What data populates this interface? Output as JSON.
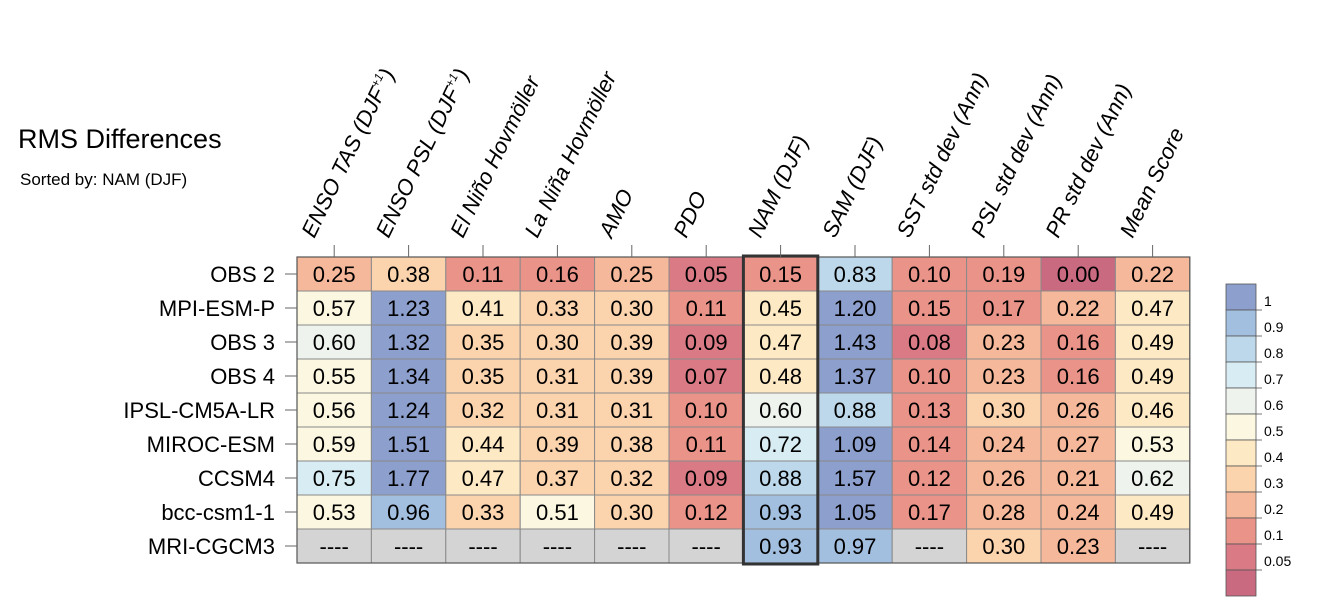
{
  "title": "RMS Differences",
  "subtitle": "Sorted by: NAM (DJF)",
  "chart_data": {
    "type": "heatmap",
    "columns": [
      "ENSO TAS (DJF+1)",
      "ENSO PSL (DJF+1)",
      "El Niño Hovmöller",
      "La Niña Hovmöller",
      "AMO",
      "PDO",
      "NAM (DJF)",
      "SAM (DJF)",
      "SST std dev (Ann)",
      "PSL std dev (Ann)",
      "PR std dev (Ann)",
      "Mean Score"
    ],
    "rows": [
      "OBS 2",
      "MPI-ESM-P",
      "OBS 3",
      "OBS 4",
      "IPSL-CM5A-LR",
      "MIROC-ESM",
      "CCSM4",
      "bcc-csm1-1",
      "MRI-CGCM3"
    ],
    "values": [
      [
        0.25,
        0.38,
        0.11,
        0.16,
        0.25,
        0.05,
        0.15,
        0.83,
        0.1,
        0.19,
        0.0,
        0.22
      ],
      [
        0.57,
        1.23,
        0.41,
        0.33,
        0.3,
        0.11,
        0.45,
        1.2,
        0.15,
        0.17,
        0.22,
        0.47
      ],
      [
        0.6,
        1.32,
        0.35,
        0.3,
        0.39,
        0.09,
        0.47,
        1.43,
        0.08,
        0.23,
        0.16,
        0.49
      ],
      [
        0.55,
        1.34,
        0.35,
        0.31,
        0.39,
        0.07,
        0.48,
        1.37,
        0.1,
        0.23,
        0.16,
        0.49
      ],
      [
        0.56,
        1.24,
        0.32,
        0.31,
        0.31,
        0.1,
        0.6,
        0.88,
        0.13,
        0.3,
        0.26,
        0.46
      ],
      [
        0.59,
        1.51,
        0.44,
        0.39,
        0.38,
        0.11,
        0.72,
        1.09,
        0.14,
        0.24,
        0.27,
        0.53
      ],
      [
        0.75,
        1.77,
        0.47,
        0.37,
        0.32,
        0.09,
        0.88,
        1.57,
        0.12,
        0.26,
        0.21,
        0.62
      ],
      [
        0.53,
        0.96,
        0.33,
        0.51,
        0.3,
        0.12,
        0.93,
        1.05,
        0.17,
        0.28,
        0.24,
        0.49
      ],
      [
        null,
        null,
        null,
        null,
        null,
        null,
        0.93,
        0.97,
        null,
        0.3,
        0.23,
        null
      ]
    ],
    "missing_label": "----",
    "highlighted_column": "NAM (DJF)",
    "colorbar": {
      "labels": [
        "1",
        "0.9",
        "0.8",
        "0.7",
        "0.6",
        "0.5",
        "0.4",
        "0.3",
        "0.2",
        "0.1",
        "0.05"
      ],
      "colors": [
        "#8d9fcd",
        "#a3bfe0",
        "#bcd8ea",
        "#d8ecf3",
        "#eef3ee",
        "#fbf7e0",
        "#fde9c4",
        "#fbd3ad",
        "#f5b89a",
        "#ea9389",
        "#d97a85",
        "#c96a80"
      ]
    },
    "missing_color": "#d4d4d4"
  }
}
